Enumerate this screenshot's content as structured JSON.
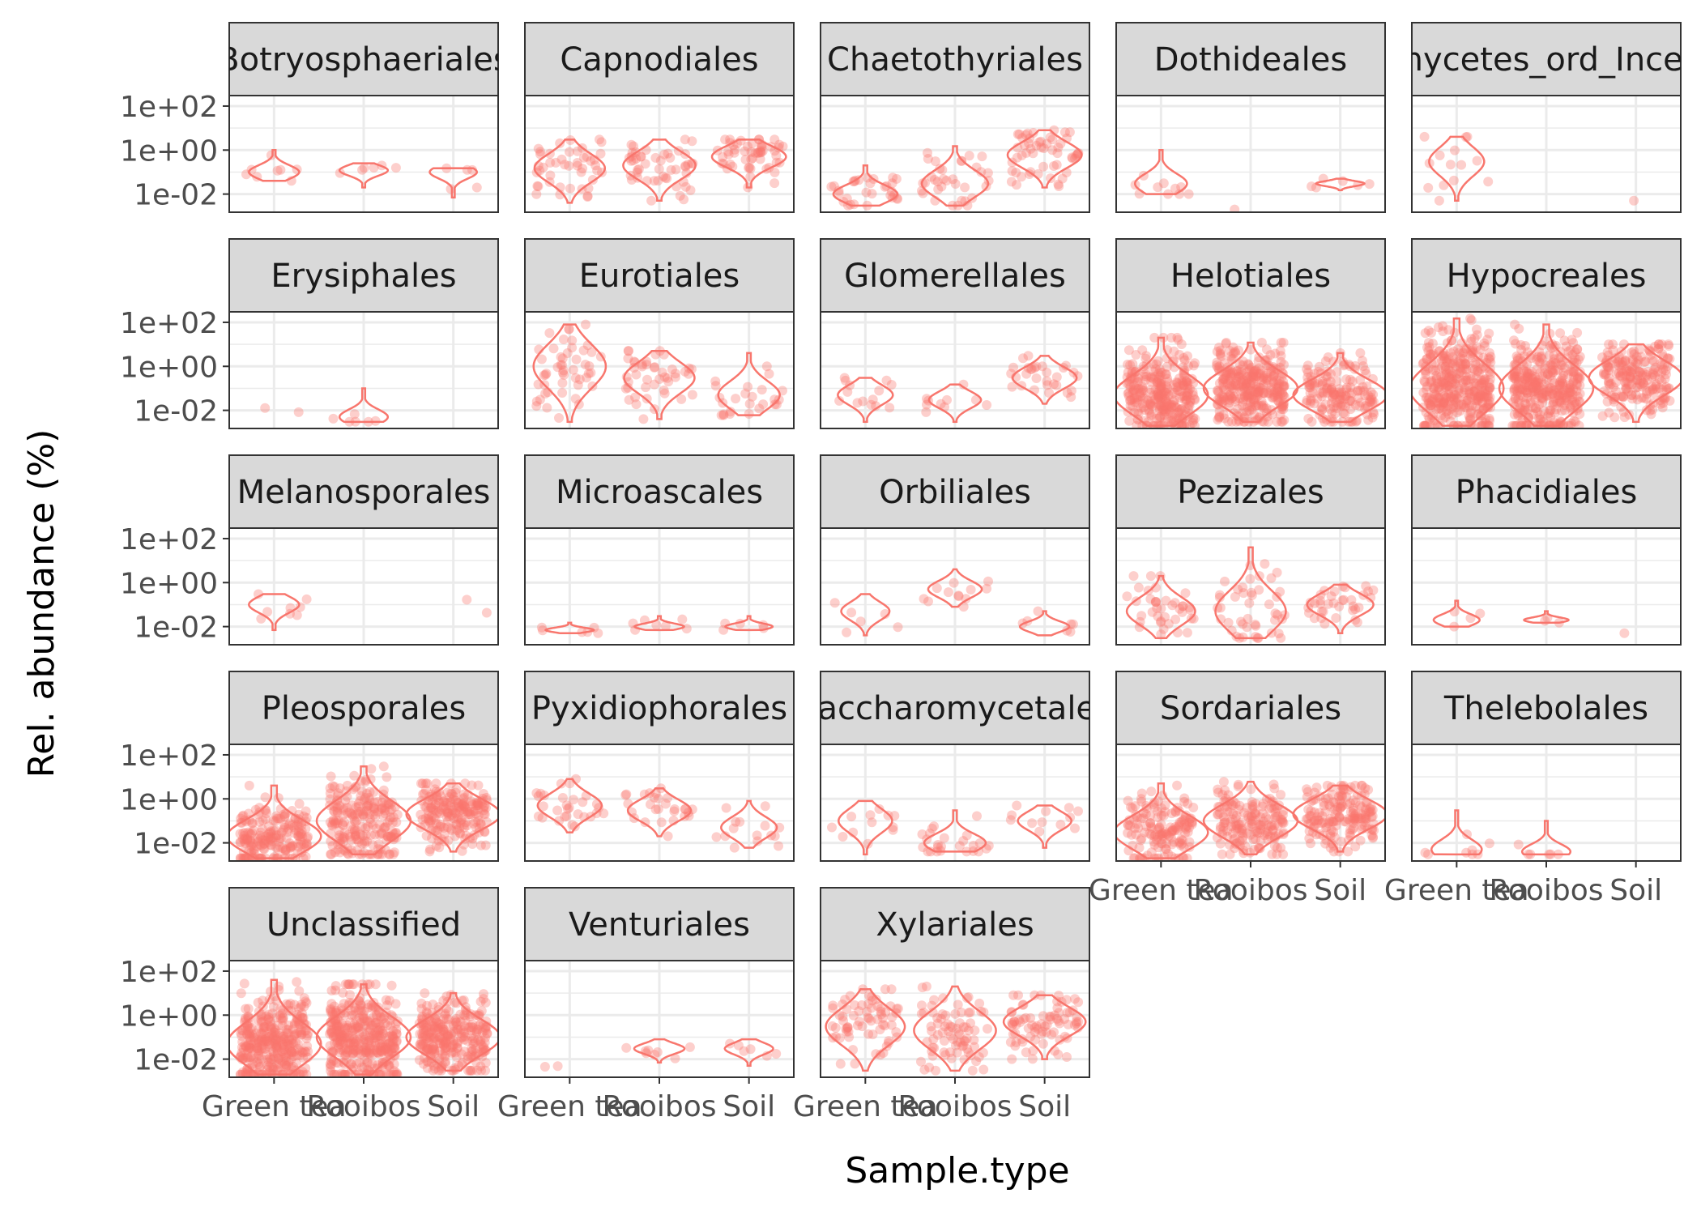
{
  "chart_data": {
    "type": "violin",
    "xlabel": "Sample.type",
    "ylabel": "Rel. abundance (%)",
    "y_scale": "log10",
    "ylim": [
      0.0015,
      300
    ],
    "y_ticks": [
      {
        "value": 100,
        "label": "1e+02"
      },
      {
        "value": 1,
        "label": "1e+00"
      },
      {
        "value": 0.01,
        "label": "1e-02"
      }
    ],
    "categories": [
      "Green tea",
      "Rooibos",
      "Soil"
    ],
    "grid": true,
    "color": "#F8766D",
    "panels": [
      {
        "title": "Botryosphaeriales",
        "groups": [
          {
            "category": "Green tea",
            "n": 8,
            "median": 0.1,
            "low": 0.04,
            "high": 1.0
          },
          {
            "category": "Rooibos",
            "n": 6,
            "median": 0.12,
            "low": 0.02,
            "high": 0.25
          },
          {
            "category": "Soil",
            "n": 5,
            "median": 0.1,
            "low": 0.007,
            "high": 0.15
          }
        ]
      },
      {
        "title": "Capnodiales",
        "groups": [
          {
            "category": "Green tea",
            "n": 45,
            "median": 0.15,
            "low": 0.004,
            "high": 3
          },
          {
            "category": "Rooibos",
            "n": 50,
            "median": 0.2,
            "low": 0.005,
            "high": 3
          },
          {
            "category": "Soil",
            "n": 55,
            "median": 0.5,
            "low": 0.02,
            "high": 3
          }
        ]
      },
      {
        "title": "Chaetothyriales",
        "groups": [
          {
            "category": "Green tea",
            "n": 30,
            "median": 0.01,
            "low": 0.003,
            "high": 0.2
          },
          {
            "category": "Rooibos",
            "n": 35,
            "median": 0.03,
            "low": 0.003,
            "high": 1.5
          },
          {
            "category": "Soil",
            "n": 55,
            "median": 0.6,
            "low": 0.02,
            "high": 8
          }
        ]
      },
      {
        "title": "Dothideales",
        "groups": [
          {
            "category": "Green tea",
            "n": 10,
            "median": 0.03,
            "low": 0.01,
            "high": 1
          },
          {
            "category": "Rooibos",
            "n": 1,
            "median": 0.002,
            "low": 0.002,
            "high": 0.002
          },
          {
            "category": "Soil",
            "n": 6,
            "median": 0.03,
            "low": 0.015,
            "high": 0.05
          }
        ]
      },
      {
        "title": "Dothideomycetes_ord_Incertae_sedis",
        "groups": [
          {
            "category": "Green tea",
            "n": 14,
            "median": 0.3,
            "low": 0.005,
            "high": 4
          },
          {
            "category": "Soil",
            "n": 1,
            "median": 0.005,
            "low": 0.005,
            "high": 0.005
          }
        ]
      },
      {
        "title": "Erysiphales",
        "groups": [
          {
            "category": "Green tea",
            "n": 2,
            "median": 0.01,
            "low": 0.005,
            "high": 0.03
          },
          {
            "category": "Rooibos",
            "n": 6,
            "median": 0.005,
            "low": 0.003,
            "high": 0.1
          }
        ]
      },
      {
        "title": "Eurotiales",
        "groups": [
          {
            "category": "Green tea",
            "n": 50,
            "median": 1,
            "low": 0.003,
            "high": 80
          },
          {
            "category": "Rooibos",
            "n": 45,
            "median": 0.3,
            "low": 0.004,
            "high": 5
          },
          {
            "category": "Soil",
            "n": 25,
            "median": 0.05,
            "low": 0.006,
            "high": 4
          }
        ]
      },
      {
        "title": "Glomerellales",
        "groups": [
          {
            "category": "Green tea",
            "n": 14,
            "median": 0.05,
            "low": 0.003,
            "high": 0.3
          },
          {
            "category": "Rooibos",
            "n": 10,
            "median": 0.03,
            "low": 0.003,
            "high": 0.15
          },
          {
            "category": "Soil",
            "n": 30,
            "median": 0.3,
            "low": 0.02,
            "high": 3
          }
        ]
      },
      {
        "title": "Helotiales",
        "groups": [
          {
            "category": "Green tea",
            "n": 300,
            "median": 0.05,
            "low": 0.002,
            "high": 20
          },
          {
            "category": "Rooibos",
            "n": 320,
            "median": 0.1,
            "low": 0.003,
            "high": 12
          },
          {
            "category": "Soil",
            "n": 160,
            "median": 0.05,
            "low": 0.003,
            "high": 4
          }
        ]
      },
      {
        "title": "Hypocreales",
        "groups": [
          {
            "category": "Green tea",
            "n": 380,
            "median": 0.1,
            "low": 0.002,
            "high": 150
          },
          {
            "category": "Rooibos",
            "n": 360,
            "median": 0.1,
            "low": 0.002,
            "high": 80
          },
          {
            "category": "Soil",
            "n": 200,
            "median": 0.3,
            "low": 0.003,
            "high": 10
          }
        ]
      },
      {
        "title": "Melanosporales",
        "groups": [
          {
            "category": "Green tea",
            "n": 8,
            "median": 0.1,
            "low": 0.007,
            "high": 0.3
          },
          {
            "category": "Soil",
            "n": 2,
            "median": 0.05,
            "low": 0.015,
            "high": 0.2
          }
        ]
      },
      {
        "title": "Microascales",
        "groups": [
          {
            "category": "Green tea",
            "n": 6,
            "median": 0.007,
            "low": 0.005,
            "high": 0.015
          },
          {
            "category": "Rooibos",
            "n": 7,
            "median": 0.01,
            "low": 0.007,
            "high": 0.03
          },
          {
            "category": "Soil",
            "n": 5,
            "median": 0.01,
            "low": 0.007,
            "high": 0.03
          }
        ]
      },
      {
        "title": "Orbiliales",
        "groups": [
          {
            "category": "Green tea",
            "n": 6,
            "median": 0.05,
            "low": 0.004,
            "high": 0.3
          },
          {
            "category": "Rooibos",
            "n": 12,
            "median": 0.5,
            "low": 0.08,
            "high": 4
          },
          {
            "category": "Soil",
            "n": 7,
            "median": 0.01,
            "low": 0.004,
            "high": 0.05
          }
        ]
      },
      {
        "title": "Pezizales",
        "groups": [
          {
            "category": "Green tea",
            "n": 40,
            "median": 0.05,
            "low": 0.003,
            "high": 2
          },
          {
            "category": "Rooibos",
            "n": 45,
            "median": 0.05,
            "low": 0.003,
            "high": 40
          },
          {
            "category": "Soil",
            "n": 35,
            "median": 0.1,
            "low": 0.005,
            "high": 0.8
          }
        ]
      },
      {
        "title": "Phacidiales",
        "groups": [
          {
            "category": "Green tea",
            "n": 4,
            "median": 0.02,
            "low": 0.01,
            "high": 0.15
          },
          {
            "category": "Rooibos",
            "n": 3,
            "median": 0.02,
            "low": 0.015,
            "high": 0.05
          },
          {
            "category": "Soil",
            "n": 1,
            "median": 0.005,
            "low": 0.005,
            "high": 0.005
          }
        ]
      },
      {
        "title": "Pleosporales",
        "groups": [
          {
            "category": "Green tea",
            "n": 200,
            "median": 0.02,
            "low": 0.002,
            "high": 4
          },
          {
            "category": "Rooibos",
            "n": 220,
            "median": 0.1,
            "low": 0.003,
            "high": 30
          },
          {
            "category": "Soil",
            "n": 200,
            "median": 0.2,
            "low": 0.004,
            "high": 5
          }
        ]
      },
      {
        "title": "Pyxidiophorales",
        "groups": [
          {
            "category": "Green tea",
            "n": 30,
            "median": 0.5,
            "low": 0.03,
            "high": 8
          },
          {
            "category": "Rooibos",
            "n": 28,
            "median": 0.3,
            "low": 0.02,
            "high": 3
          },
          {
            "category": "Soil",
            "n": 15,
            "median": 0.05,
            "low": 0.006,
            "high": 0.8
          }
        ]
      },
      {
        "title": "Saccharomycetales",
        "groups": [
          {
            "category": "Green tea",
            "n": 12,
            "median": 0.1,
            "low": 0.003,
            "high": 0.8
          },
          {
            "category": "Rooibos",
            "n": 25,
            "median": 0.01,
            "low": 0.004,
            "high": 0.3
          },
          {
            "category": "Soil",
            "n": 12,
            "median": 0.1,
            "low": 0.006,
            "high": 0.5
          }
        ]
      },
      {
        "title": "Sordariales",
        "groups": [
          {
            "category": "Green tea",
            "n": 150,
            "median": 0.03,
            "low": 0.002,
            "high": 5
          },
          {
            "category": "Rooibos",
            "n": 170,
            "median": 0.1,
            "low": 0.003,
            "high": 6
          },
          {
            "category": "Soil",
            "n": 170,
            "median": 0.2,
            "low": 0.004,
            "high": 4
          }
        ]
      },
      {
        "title": "Thelebolales",
        "groups": [
          {
            "category": "Green tea",
            "n": 8,
            "median": 0.005,
            "low": 0.003,
            "high": 0.3
          },
          {
            "category": "Rooibos",
            "n": 6,
            "median": 0.004,
            "low": 0.003,
            "high": 0.1
          }
        ]
      },
      {
        "title": "Unclassified",
        "groups": [
          {
            "category": "Green tea",
            "n": 350,
            "median": 0.05,
            "low": 0.002,
            "high": 40
          },
          {
            "category": "Rooibos",
            "n": 380,
            "median": 0.1,
            "low": 0.002,
            "high": 25
          },
          {
            "category": "Soil",
            "n": 280,
            "median": 0.1,
            "low": 0.003,
            "high": 10
          }
        ]
      },
      {
        "title": "Venturiales",
        "groups": [
          {
            "category": "Green tea",
            "n": 2,
            "median": 0.004,
            "low": 0.003,
            "high": 0.005
          },
          {
            "category": "Rooibos",
            "n": 8,
            "median": 0.03,
            "low": 0.007,
            "high": 0.08
          },
          {
            "category": "Soil",
            "n": 6,
            "median": 0.03,
            "low": 0.005,
            "high": 0.08
          }
        ]
      },
      {
        "title": "Xylariales",
        "groups": [
          {
            "category": "Green tea",
            "n": 70,
            "median": 0.3,
            "low": 0.003,
            "high": 15
          },
          {
            "category": "Rooibos",
            "n": 80,
            "median": 0.2,
            "low": 0.003,
            "high": 20
          },
          {
            "category": "Soil",
            "n": 80,
            "median": 0.5,
            "low": 0.01,
            "high": 8
          }
        ]
      }
    ]
  }
}
